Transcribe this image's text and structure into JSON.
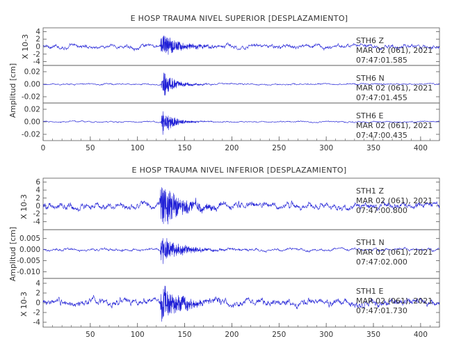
{
  "chart_data": [
    {
      "type": "line",
      "title": "E HOSP TRAUMA NIVEL SUPERIOR [DESPLAZAMIENTO]",
      "ylabel": "Amplitud [cm]",
      "xlim": [
        0,
        420
      ],
      "xticks": [
        0,
        50,
        100,
        150,
        200,
        250,
        300,
        350,
        400
      ],
      "line_color": "#1f1fd6",
      "panels": [
        {
          "component": "Z",
          "station": "STH6",
          "date": "MAR 02 (061), 2021",
          "time": "07:47:01.585",
          "scale_label": "X 10-3",
          "ylim": [
            -5,
            5
          ],
          "yticks": [
            4,
            2,
            0,
            -2,
            -4
          ],
          "ytick_labels": [
            "4",
            "2",
            "0",
            "-2",
            "-4"
          ],
          "noise": 0.55,
          "peak": 4.2,
          "decay": 18,
          "onset": 124
        },
        {
          "component": "N",
          "station": "STH6",
          "date": "MAR 02 (061), 2021",
          "time": "07:47:01.455",
          "scale_label": "",
          "ylim": [
            -0.03,
            0.03
          ],
          "yticks": [
            0.02,
            0.0,
            -0.02
          ],
          "ytick_labels": [
            "0.02",
            "0.00",
            "-0.02"
          ],
          "noise": 0.0012,
          "peak": 0.028,
          "decay": 12,
          "onset": 125
        },
        {
          "component": "E",
          "station": "STH6",
          "date": "MAR 02 (061), 2021",
          "time": "07:47:00.435",
          "scale_label": "",
          "ylim": [
            -0.03,
            0.03
          ],
          "yticks": [
            0.02,
            0.0,
            -0.02
          ],
          "ytick_labels": [
            "0.02",
            "0.00",
            "-0.02"
          ],
          "noise": 0.0011,
          "peak": 0.026,
          "decay": 12,
          "onset": 125
        }
      ]
    },
    {
      "type": "line",
      "title": "E HOSP TRAUMA NIVEL INFERIOR [DESPLAZAMIENTO]",
      "ylabel": "Amplitud [cm]",
      "xlim": [
        0,
        420
      ],
      "xticks": [
        50,
        100,
        150,
        200,
        250,
        300,
        350,
        400
      ],
      "line_color": "#1f1fd6",
      "panels": [
        {
          "component": "Z",
          "station": "STH1",
          "date": "MAR 02 (061), 2021",
          "time": "07:47:00.800",
          "scale_label": "X 10-3",
          "ylim": [
            -6,
            7
          ],
          "yticks": [
            6,
            4,
            2,
            0,
            -2,
            -4
          ],
          "ytick_labels": [
            "6",
            "4",
            "2",
            "0",
            "-2",
            "-4"
          ],
          "noise": 0.9,
          "peak": 6.5,
          "decay": 22,
          "onset": 123
        },
        {
          "component": "N",
          "station": "STH1",
          "date": "MAR 02 (061), 2021",
          "time": "07:47:02.000",
          "scale_label": "",
          "ylim": [
            -0.013,
            0.009
          ],
          "yticks": [
            0.005,
            0.0,
            -0.005,
            -0.01
          ],
          "ytick_labels": [
            "0.005",
            "0.000",
            "-0.005",
            "-0.010"
          ],
          "noise": 0.0006,
          "peak": 0.008,
          "decay": 20,
          "onset": 124
        },
        {
          "component": "E",
          "station": "STH1",
          "date": "MAR 02 (061), 2021",
          "time": "07:47:01.730",
          "scale_label": "X 10-3",
          "ylim": [
            -5,
            5
          ],
          "yticks": [
            4,
            2,
            0,
            -2,
            -4
          ],
          "ytick_labels": [
            "4",
            "2",
            "0",
            "-2",
            "-4"
          ],
          "noise": 0.75,
          "peak": 4.6,
          "decay": 20,
          "onset": 124
        }
      ]
    }
  ]
}
